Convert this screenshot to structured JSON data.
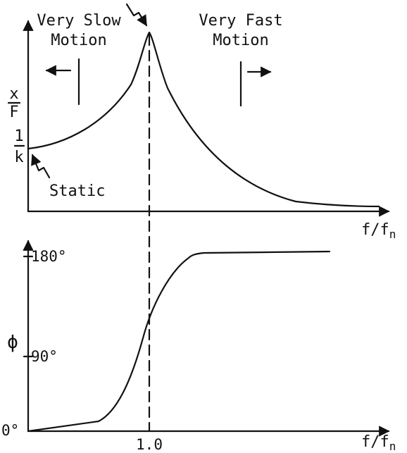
{
  "top_plot": {
    "y_axis_fraction": {
      "numerator": "x",
      "denominator": "F"
    },
    "static_level": {
      "numerator": "1",
      "denominator": "k"
    },
    "x_axis_label_main": "f/f",
    "x_axis_label_sub": "n",
    "region_left": [
      "Very Slow",
      "Motion"
    ],
    "region_right": [
      "Very Fast",
      "Motion"
    ],
    "static_label": "Static"
  },
  "bottom_plot": {
    "y_axis_label": "ϕ",
    "tick_180": "180°",
    "tick_90": "90°",
    "tick_0": "0°",
    "x_tick_label": "1.0",
    "x_axis_label_main": "f/f",
    "x_axis_label_sub": "n"
  },
  "colors": {
    "ink": "#111111",
    "background": "#ffffff"
  }
}
